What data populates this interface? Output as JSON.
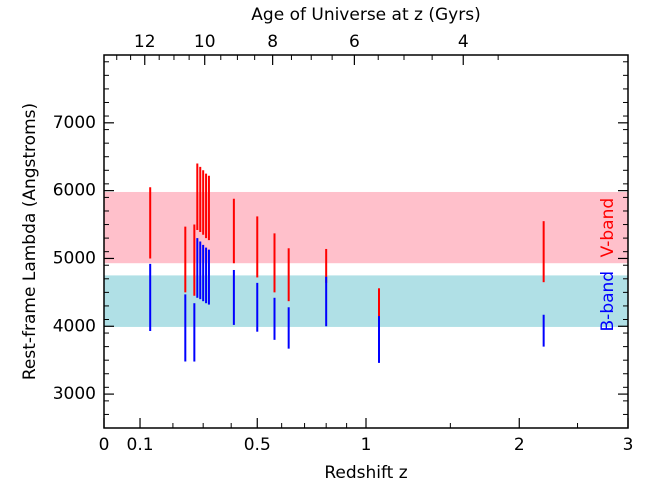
{
  "chart_data": {
    "type": "vertical-range",
    "title": "",
    "xlabel": "Redshift z",
    "ylabel": "Rest-frame Lambda (Angstroms)",
    "top_axis_label": "Age of Universe at z (Gyrs)",
    "ylim": [
      2500,
      8000
    ],
    "y_ticks": [
      3000,
      4000,
      5000,
      6000,
      7000
    ],
    "x_ticks": [
      {
        "label": "0",
        "z": 0
      },
      {
        "label": "0.1",
        "z": 0.1
      },
      {
        "label": "0.5",
        "z": 0.5
      },
      {
        "label": "1",
        "z": 1
      },
      {
        "label": "2",
        "z": 2
      },
      {
        "label": "3",
        "z": 3
      }
    ],
    "top_ticks": [
      {
        "label": "12",
        "age_gyr": 12
      },
      {
        "label": "10",
        "age_gyr": 10
      },
      {
        "label": "8",
        "age_gyr": 8
      },
      {
        "label": "6",
        "age_gyr": 6
      },
      {
        "label": "4",
        "age_gyr": 4
      }
    ],
    "bands": [
      {
        "name": "V-band",
        "y_range": [
          4930,
          5980
        ],
        "color": "#ffc0cb",
        "label_color": "#ff0000"
      },
      {
        "name": "B-band",
        "y_range": [
          3990,
          4750
        ],
        "color": "#b0e0e6",
        "label_color": "#0000ff"
      }
    ],
    "series": [
      {
        "name": "V-band",
        "color": "#ff0000",
        "points": [
          {
            "z": 0.13,
            "y_low": 5000,
            "y_high": 6050
          },
          {
            "z": 0.24,
            "y_low": 4500,
            "y_high": 5470
          },
          {
            "z": 0.27,
            "y_low": 4450,
            "y_high": 5500
          },
          {
            "z": 0.28,
            "y_low": 5420,
            "y_high": 6400
          },
          {
            "z": 0.29,
            "y_low": 5390,
            "y_high": 6350
          },
          {
            "z": 0.3,
            "y_low": 5350,
            "y_high": 6300
          },
          {
            "z": 0.31,
            "y_low": 5300,
            "y_high": 6250
          },
          {
            "z": 0.32,
            "y_low": 5270,
            "y_high": 6220
          },
          {
            "z": 0.41,
            "y_low": 4930,
            "y_high": 5880
          },
          {
            "z": 0.5,
            "y_low": 4720,
            "y_high": 5620
          },
          {
            "z": 0.57,
            "y_low": 4500,
            "y_high": 5370
          },
          {
            "z": 0.63,
            "y_low": 4370,
            "y_high": 5150
          },
          {
            "z": 0.8,
            "y_low": 4640,
            "y_high": 5140
          },
          {
            "z": 1.07,
            "y_low": 4100,
            "y_high": 4560
          },
          {
            "z": 2.2,
            "y_low": 4650,
            "y_high": 5550
          }
        ]
      },
      {
        "name": "B-band",
        "color": "#0000ff",
        "points": [
          {
            "z": 0.13,
            "y_low": 3930,
            "y_high": 4920
          },
          {
            "z": 0.24,
            "y_low": 3480,
            "y_high": 4470
          },
          {
            "z": 0.27,
            "y_low": 3480,
            "y_high": 4340
          },
          {
            "z": 0.28,
            "y_low": 4420,
            "y_high": 5300
          },
          {
            "z": 0.29,
            "y_low": 4400,
            "y_high": 5250
          },
          {
            "z": 0.3,
            "y_low": 4370,
            "y_high": 5200
          },
          {
            "z": 0.31,
            "y_low": 4340,
            "y_high": 5160
          },
          {
            "z": 0.32,
            "y_low": 4320,
            "y_high": 5130
          },
          {
            "z": 0.41,
            "y_low": 4020,
            "y_high": 4830
          },
          {
            "z": 0.5,
            "y_low": 3920,
            "y_high": 4640
          },
          {
            "z": 0.57,
            "y_low": 3800,
            "y_high": 4420
          },
          {
            "z": 0.63,
            "y_low": 3670,
            "y_high": 4280
          },
          {
            "z": 0.8,
            "y_low": 4000,
            "y_high": 4730
          },
          {
            "z": 1.07,
            "y_low": 3460,
            "y_high": 4150
          },
          {
            "z": 2.2,
            "y_low": 3700,
            "y_high": 4170
          }
        ]
      }
    ]
  }
}
